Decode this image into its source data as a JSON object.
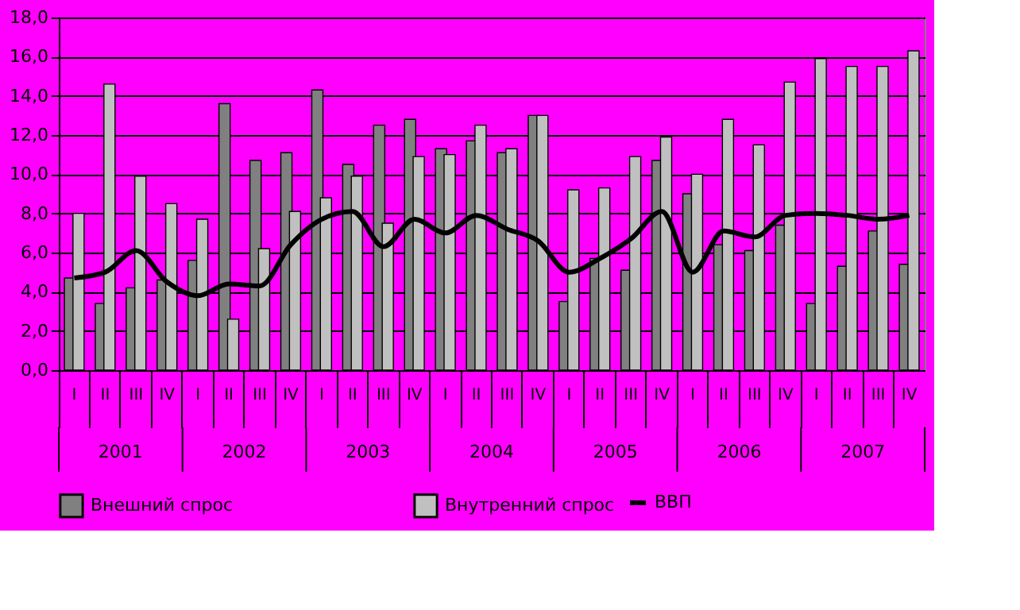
{
  "chart_data": {
    "type": "bar",
    "categories": [
      "I",
      "II",
      "III",
      "IV",
      "I",
      "II",
      "III",
      "IV",
      "I",
      "II",
      "III",
      "IV",
      "I",
      "II",
      "III",
      "IV",
      "I",
      "II",
      "III",
      "IV",
      "I",
      "II",
      "III",
      "IV",
      "I",
      "II",
      "III",
      "IV"
    ],
    "series": [
      {
        "name": "Внешний спрос",
        "color": "#808080",
        "values": [
          4.7,
          3.4,
          4.2,
          4.6,
          5.6,
          13.6,
          10.7,
          11.1,
          14.3,
          10.5,
          12.5,
          12.8,
          11.3,
          11.7,
          11.1,
          13.0,
          3.5,
          5.7,
          5.1,
          10.7,
          9.0,
          6.4,
          6.1,
          7.4,
          3.4,
          5.3,
          7.1,
          5.4
        ]
      },
      {
        "name": "Внутренний спрос",
        "color": "#c0c0c0",
        "values": [
          8.0,
          14.6,
          9.9,
          8.5,
          7.7,
          2.6,
          6.2,
          8.1,
          8.8,
          9.9,
          7.5,
          10.9,
          11.0,
          12.5,
          11.3,
          13.0,
          9.2,
          9.3,
          10.9,
          11.9,
          10.0,
          12.8,
          11.5,
          14.7,
          15.9,
          15.5,
          15.5,
          16.3
        ]
      },
      {
        "name": "ВВП",
        "type": "line",
        "color": "#000000",
        "values": [
          4.7,
          5.0,
          6.1,
          4.5,
          3.8,
          4.4,
          4.3,
          6.4,
          7.7,
          8.1,
          6.3,
          7.7,
          7.0,
          7.9,
          7.2,
          6.6,
          5.0,
          5.7,
          6.7,
          8.1,
          5.0,
          7.1,
          6.8,
          7.9,
          8.0,
          7.9,
          7.7,
          7.9
        ]
      }
    ],
    "annotations": [
      "2001",
      "2002",
      "2003",
      "2004",
      "2005",
      "2006",
      "2007"
    ],
    "ylim": [
      0,
      18
    ],
    "yticks": [
      {
        "value": 0,
        "label": "0,0"
      },
      {
        "value": 2,
        "label": "2,0"
      },
      {
        "value": 4,
        "label": "4,0"
      },
      {
        "value": 6,
        "label": "6,0"
      },
      {
        "value": 8,
        "label": "8,0"
      },
      {
        "value": 10,
        "label": "10,0"
      },
      {
        "value": 12,
        "label": "12,0"
      },
      {
        "value": 14,
        "label": "14,0"
      },
      {
        "value": 16,
        "label": "16,0"
      },
      {
        "value": 18,
        "label": "18,0"
      }
    ],
    "grid": true,
    "legend": "bottom"
  }
}
